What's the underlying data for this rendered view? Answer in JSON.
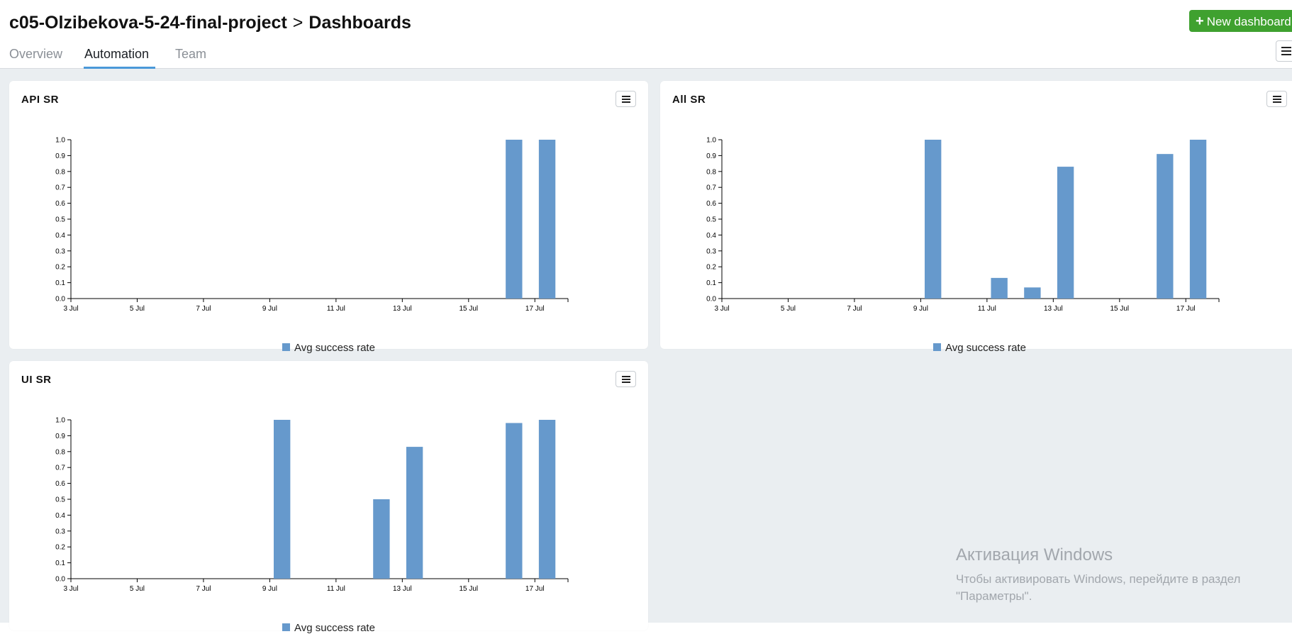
{
  "header": {
    "project": "c05-Olzibekova-5-24-final-project",
    "separator": ">",
    "section": "Dashboards",
    "new_button_label": "New dashboard"
  },
  "tabs": [
    {
      "label": "Overview",
      "active": false
    },
    {
      "label": "Automation",
      "active": true
    },
    {
      "label": "Team",
      "active": false
    }
  ],
  "panels": [
    {
      "title": "API SR",
      "legend": "Avg success rate"
    },
    {
      "title": "All SR",
      "legend": "Avg success rate"
    },
    {
      "title": "UI SR",
      "legend": "Avg success rate"
    }
  ],
  "chart_data": [
    {
      "type": "bar",
      "title": "API SR",
      "x_ticks": [
        "3 Jul",
        "5 Jul",
        "7 Jul",
        "9 Jul",
        "11 Jul",
        "13 Jul",
        "15 Jul",
        "17 Jul"
      ],
      "y_ticks": [
        "0.0",
        "0.1",
        "0.2",
        "0.3",
        "0.4",
        "0.5",
        "0.6",
        "0.7",
        "0.8",
        "0.9",
        "1.0"
      ],
      "ylim": [
        0,
        1
      ],
      "xlim": [
        "3 Jul",
        "18 Jul"
      ],
      "series": [
        {
          "name": "Avg success rate",
          "color": "#6699cc",
          "x": [
            "16 Jul",
            "17 Jul"
          ],
          "values": [
            1.0,
            1.0
          ]
        }
      ],
      "legend": "bottom-center",
      "grid": false
    },
    {
      "type": "bar",
      "title": "All SR",
      "x_ticks": [
        "3 Jul",
        "5 Jul",
        "7 Jul",
        "9 Jul",
        "11 Jul",
        "13 Jul",
        "15 Jul",
        "17 Jul"
      ],
      "y_ticks": [
        "0.0",
        "0.1",
        "0.2",
        "0.3",
        "0.4",
        "0.5",
        "0.6",
        "0.7",
        "0.8",
        "0.9",
        "1.0"
      ],
      "ylim": [
        0,
        1
      ],
      "xlim": [
        "3 Jul",
        "18 Jul"
      ],
      "series": [
        {
          "name": "Avg success rate",
          "color": "#6699cc",
          "x": [
            "9 Jul",
            "11 Jul",
            "12 Jul",
            "13 Jul",
            "16 Jul",
            "17 Jul"
          ],
          "values": [
            1.0,
            0.13,
            0.07,
            0.83,
            0.91,
            1.0
          ]
        }
      ],
      "legend": "bottom-center",
      "grid": false
    },
    {
      "type": "bar",
      "title": "UI SR",
      "x_ticks": [
        "3 Jul",
        "5 Jul",
        "7 Jul",
        "9 Jul",
        "11 Jul",
        "13 Jul",
        "15 Jul",
        "17 Jul"
      ],
      "y_ticks": [
        "0.0",
        "0.1",
        "0.2",
        "0.3",
        "0.4",
        "0.5",
        "0.6",
        "0.7",
        "0.8",
        "0.9",
        "1.0"
      ],
      "ylim": [
        0,
        1
      ],
      "xlim": [
        "3 Jul",
        "18 Jul"
      ],
      "series": [
        {
          "name": "Avg success rate",
          "color": "#6699cc",
          "x": [
            "9 Jul",
            "12 Jul",
            "13 Jul",
            "16 Jul",
            "17 Jul"
          ],
          "values": [
            1.0,
            0.5,
            0.83,
            0.98,
            1.0
          ]
        }
      ],
      "legend": "bottom-center",
      "grid": false
    }
  ],
  "watermark": {
    "title": "Активация Windows",
    "line1": "Чтобы активировать Windows, перейдите в раздел",
    "line2": "\"Параметры\"."
  },
  "icons": {
    "new_button": "plus-icon",
    "menus": "hamburger-menu-icon"
  },
  "colors": {
    "accent": "#4a98d9",
    "button": "#3fa12f",
    "bar": "#6699cc"
  }
}
